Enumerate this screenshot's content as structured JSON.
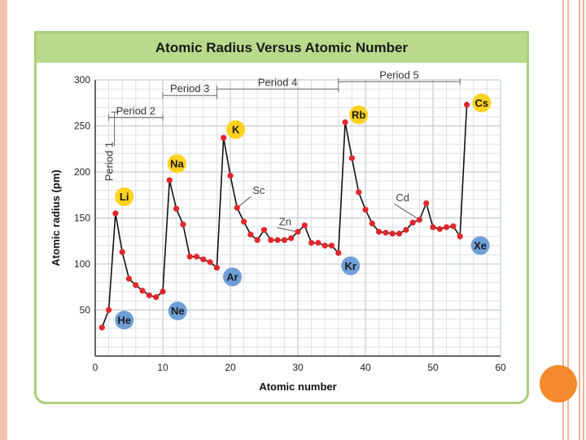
{
  "chart_data": {
    "type": "line",
    "title": "Atomic Radius Versus Atomic Number",
    "xlabel": "Atomic number",
    "ylabel": "Atomic radius (pm)",
    "xlim": [
      0,
      60
    ],
    "ylim": [
      0,
      300
    ],
    "xticks": [
      0,
      10,
      20,
      30,
      40,
      50,
      60
    ],
    "yticks": [
      50,
      100,
      150,
      200,
      250,
      300
    ],
    "grid": true,
    "series": [
      {
        "name": "",
        "color": "#e3262a",
        "x": [
          1,
          2,
          3,
          4,
          5,
          6,
          7,
          8,
          9,
          10,
          11,
          12,
          13,
          14,
          15,
          16,
          17,
          18,
          19,
          20,
          21,
          22,
          23,
          24,
          25,
          26,
          27,
          28,
          29,
          30,
          31,
          32,
          33,
          34,
          35,
          36,
          37,
          38,
          39,
          40,
          41,
          42,
          43,
          44,
          45,
          46,
          47,
          48,
          49,
          50,
          51,
          52,
          53,
          54,
          55
        ],
        "y": [
          31,
          50,
          155,
          113,
          84,
          77,
          71,
          66,
          64,
          70,
          191,
          160,
          143,
          108,
          108,
          105,
          102,
          96,
          237,
          196,
          161,
          146,
          132,
          126,
          137,
          126,
          126,
          126,
          128,
          135,
          142,
          123,
          123,
          120,
          120,
          112,
          254,
          215,
          178,
          159,
          144,
          135,
          134,
          133,
          133,
          137,
          145,
          148,
          166,
          140,
          138,
          140,
          141,
          130,
          273
        ]
      }
    ],
    "element_labels": [
      {
        "text": "He",
        "x": 4.3,
        "y": 39,
        "kind": "noble"
      },
      {
        "text": "Li",
        "x": 4.3,
        "y": 173,
        "kind": "alkali"
      },
      {
        "text": "Na",
        "x": 12.1,
        "y": 209,
        "kind": "alkali"
      },
      {
        "text": "Ne",
        "x": 12.2,
        "y": 49,
        "kind": "noble"
      },
      {
        "text": "K",
        "x": 20.8,
        "y": 246,
        "kind": "alkali"
      },
      {
        "text": "Ar",
        "x": 20.3,
        "y": 86,
        "kind": "noble"
      },
      {
        "text": "Rb",
        "x": 39.0,
        "y": 262,
        "kind": "alkali"
      },
      {
        "text": "Kr",
        "x": 37.8,
        "y": 98,
        "kind": "noble"
      },
      {
        "text": "Cs",
        "x": 57.2,
        "y": 275,
        "kind": "alkali"
      },
      {
        "text": "Xe",
        "x": 57.0,
        "y": 120,
        "kind": "noble"
      }
    ],
    "annotations": [
      {
        "text": "Sc",
        "x": 23.3,
        "y": 176,
        "to_x": 21,
        "to_y": 161
      },
      {
        "text": "Zn",
        "x": 27.2,
        "y": 142,
        "to_x": 30,
        "to_y": 135
      },
      {
        "text": "Cd",
        "x": 44.5,
        "y": 168,
        "to_x": 48,
        "to_y": 148
      }
    ],
    "periods": [
      {
        "text": "Period 1",
        "from": 2,
        "to": 2,
        "vertical": true
      },
      {
        "text": "Period 2",
        "from": 2,
        "to": 10
      },
      {
        "text": "Period 3",
        "from": 10,
        "to": 18
      },
      {
        "text": "Period 4",
        "from": 18,
        "to": 36
      },
      {
        "text": "Period 5",
        "from": 36,
        "to": 54
      }
    ],
    "label_colors": {
      "alkali": "#ffd21f",
      "noble": "#6f9fd6"
    }
  }
}
